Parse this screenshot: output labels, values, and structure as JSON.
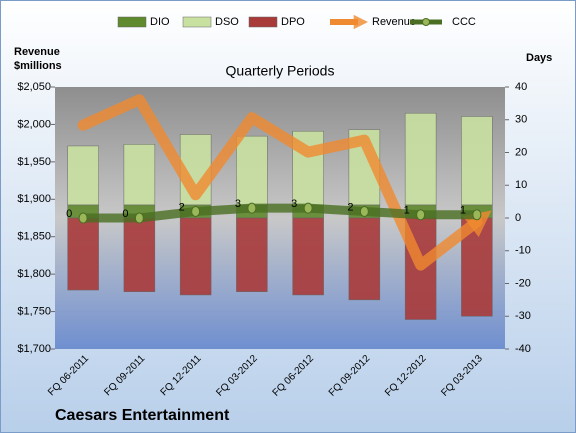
{
  "chart_data": {
    "type": "bar",
    "title": "Quarterly Periods",
    "y_label": "Revenue\n$millions",
    "y2_label": "Days",
    "company": "Caesars Entertainment",
    "categories": [
      "FQ 06-2011",
      "FQ 09-2011",
      "FQ 12-2011",
      "FQ 03-2012",
      "FQ 06-2012",
      "FQ 09-2012",
      "FQ 12-2012",
      "FQ 03-2013"
    ],
    "series": [
      {
        "name": "DIO",
        "type": "bar",
        "axis": "y2",
        "color": "#5f8a2e",
        "values": [
          4,
          4,
          4,
          4,
          4,
          4,
          4,
          4
        ]
      },
      {
        "name": "DSO",
        "type": "bar",
        "axis": "y2",
        "color": "#c8e0a0",
        "values": [
          18,
          18.5,
          21.5,
          21,
          22.5,
          23,
          28,
          27
        ]
      },
      {
        "name": "DPO",
        "type": "bar",
        "axis": "y2",
        "color": "#a83a3a",
        "values": [
          -22,
          -22.5,
          -23.5,
          -22.5,
          -23.5,
          -25,
          -31,
          -30
        ]
      },
      {
        "name": "Revenue",
        "type": "line",
        "axis": "y",
        "color": "#f08a30",
        "values": [
          1999,
          2033,
          1906,
          2009,
          1963,
          1979,
          1812,
          1870
        ]
      },
      {
        "name": "CCC",
        "type": "line",
        "axis": "y2",
        "color": "#4a6e22",
        "values": [
          0,
          0,
          2,
          3,
          3,
          2,
          1,
          1
        ]
      }
    ],
    "ylim": [
      1700,
      2050
    ],
    "yticks": [
      {
        "value": 1700,
        "label": "$1,700"
      },
      {
        "value": 1750,
        "label": "$1,750"
      },
      {
        "value": 1800,
        "label": "$1,800"
      },
      {
        "value": 1850,
        "label": "$1,850"
      },
      {
        "value": 1900,
        "label": "$1,900"
      },
      {
        "value": 1950,
        "label": "$1,950"
      },
      {
        "value": 2000,
        "label": "$2,000"
      },
      {
        "value": 2050,
        "label": "$2,050"
      }
    ],
    "y2lim": [
      -40,
      40
    ],
    "y2ticks": [
      -40,
      -30,
      -20,
      -10,
      0,
      10,
      20,
      30,
      40
    ],
    "legend": "top"
  }
}
